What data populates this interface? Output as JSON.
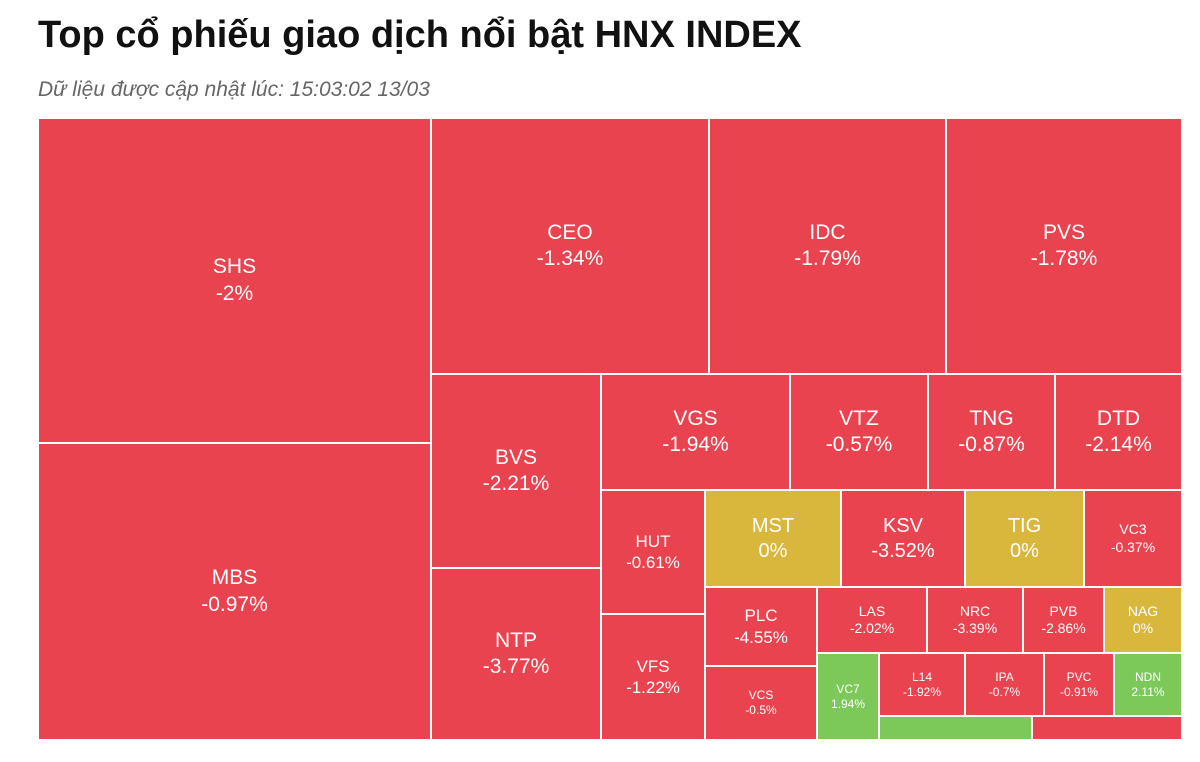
{
  "header": {
    "title": "Top cổ phiếu giao dịch nổi bật HNX INDEX",
    "updated": "Dữ liệu được cập nhật lúc: 15:03:02 13/03"
  },
  "colors": {
    "down": "#e8434f",
    "flat": "#d9b73d",
    "up": "#7cc95a"
  },
  "chart_data": {
    "type": "treemap",
    "items": [
      {
        "symbol": "SHS",
        "change": "-2%",
        "trend": "down"
      },
      {
        "symbol": "MBS",
        "change": "-0.97%",
        "trend": "down"
      },
      {
        "symbol": "CEO",
        "change": "-1.34%",
        "trend": "down"
      },
      {
        "symbol": "IDC",
        "change": "-1.79%",
        "trend": "down"
      },
      {
        "symbol": "PVS",
        "change": "-1.78%",
        "trend": "down"
      },
      {
        "symbol": "BVS",
        "change": "-2.21%",
        "trend": "down"
      },
      {
        "symbol": "NTP",
        "change": "-3.77%",
        "trend": "down"
      },
      {
        "symbol": "VGS",
        "change": "-1.94%",
        "trend": "down"
      },
      {
        "symbol": "VTZ",
        "change": "-0.57%",
        "trend": "down"
      },
      {
        "symbol": "TNG",
        "change": "-0.87%",
        "trend": "down"
      },
      {
        "symbol": "DTD",
        "change": "-2.14%",
        "trend": "down"
      },
      {
        "symbol": "HUT",
        "change": "-0.61%",
        "trend": "down"
      },
      {
        "symbol": "VFS",
        "change": "-1.22%",
        "trend": "down"
      },
      {
        "symbol": "MST",
        "change": "0%",
        "trend": "flat"
      },
      {
        "symbol": "KSV",
        "change": "-3.52%",
        "trend": "down"
      },
      {
        "symbol": "TIG",
        "change": "0%",
        "trend": "flat"
      },
      {
        "symbol": "VC3",
        "change": "-0.37%",
        "trend": "down"
      },
      {
        "symbol": "PLC",
        "change": "-4.55%",
        "trend": "down"
      },
      {
        "symbol": "VCS",
        "change": "-0.5%",
        "trend": "down"
      },
      {
        "symbol": "LAS",
        "change": "-2.02%",
        "trend": "down"
      },
      {
        "symbol": "NRC",
        "change": "-3.39%",
        "trend": "down"
      },
      {
        "symbol": "PVB",
        "change": "-2.86%",
        "trend": "down"
      },
      {
        "symbol": "NAG",
        "change": "0%",
        "trend": "flat"
      },
      {
        "symbol": "VC7",
        "change": "1.94%",
        "trend": "up"
      },
      {
        "symbol": "L14",
        "change": "-1.92%",
        "trend": "down"
      },
      {
        "symbol": "IPA",
        "change": "-0.7%",
        "trend": "down"
      },
      {
        "symbol": "PVC",
        "change": "-0.91%",
        "trend": "down"
      },
      {
        "symbol": "NDN",
        "change": "2.11%",
        "trend": "up"
      },
      {
        "symbol": "",
        "change": "",
        "trend": "up"
      },
      {
        "symbol": "",
        "change": "",
        "trend": "down"
      }
    ]
  }
}
